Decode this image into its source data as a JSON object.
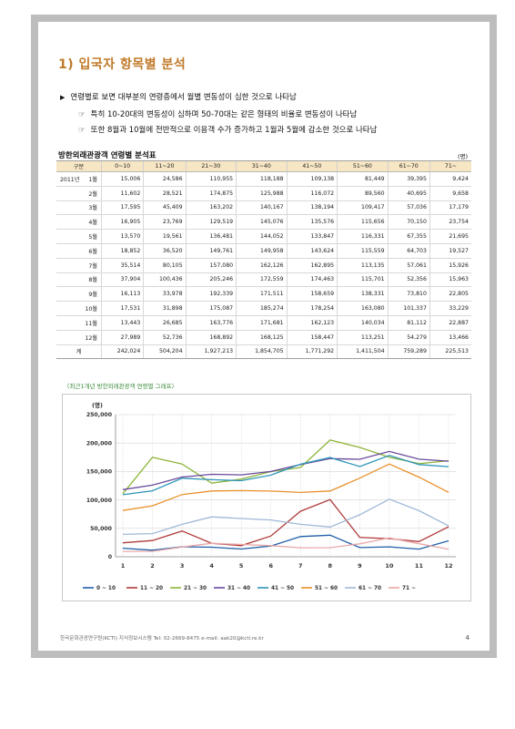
{
  "section_title": "1) 입국자 항목별 분석",
  "bullets": {
    "main": "연령별로 보면 대부분의 연령층에서 월별 변동성이 심한 것으로 나타남",
    "sub1": "특히 10-20대의 변동성이 심하며 50-70대는 같은 형태의 비율로 변동성이 나타남",
    "sub2": "또한 8월과 10월에 전반적으로 이용객 수가 증가하고 1월과 5월에 감소한 것으로 나타남"
  },
  "table": {
    "title": "방한외래관광객 연령별 분석표",
    "unit": "(명)",
    "headers": [
      "구분",
      "0~10",
      "11~20",
      "21~30",
      "31~40",
      "41~50",
      "51~60",
      "61~70",
      "71~"
    ],
    "year_label": "2011년",
    "rows": [
      {
        "month": "1월",
        "values": [
          "15,006",
          "24,586",
          "110,955",
          "118,188",
          "109,138",
          "81,449",
          "39,395",
          "9,424"
        ]
      },
      {
        "month": "2월",
        "values": [
          "11,602",
          "28,521",
          "174,875",
          "125,988",
          "116,072",
          "89,560",
          "40,695",
          "9,658"
        ]
      },
      {
        "month": "3월",
        "values": [
          "17,595",
          "45,409",
          "163,202",
          "140,167",
          "138,194",
          "109,417",
          "57,036",
          "17,179"
        ]
      },
      {
        "month": "4월",
        "values": [
          "16,905",
          "23,769",
          "129,519",
          "145,076",
          "135,576",
          "115,656",
          "70,150",
          "23,754"
        ]
      },
      {
        "month": "5월",
        "values": [
          "13,570",
          "19,561",
          "136,481",
          "144,052",
          "133,847",
          "116,331",
          "67,355",
          "21,695"
        ]
      },
      {
        "month": "6월",
        "values": [
          "18,852",
          "36,520",
          "149,761",
          "149,958",
          "143,624",
          "115,559",
          "64,703",
          "19,527"
        ]
      },
      {
        "month": "7월",
        "values": [
          "35,514",
          "80,105",
          "157,080",
          "162,126",
          "162,895",
          "113,135",
          "57,061",
          "15,926"
        ]
      },
      {
        "month": "8월",
        "values": [
          "37,904",
          "100,436",
          "205,246",
          "172,559",
          "174,463",
          "115,701",
          "52,356",
          "15,963"
        ]
      },
      {
        "month": "9월",
        "values": [
          "16,113",
          "33,978",
          "192,339",
          "171,511",
          "158,659",
          "138,331",
          "73,810",
          "22,805"
        ]
      },
      {
        "month": "10월",
        "values": [
          "17,531",
          "31,898",
          "175,087",
          "185,274",
          "178,254",
          "163,080",
          "101,337",
          "33,229"
        ]
      },
      {
        "month": "11월",
        "values": [
          "13,443",
          "26,685",
          "163,776",
          "171,681",
          "162,123",
          "140,034",
          "81,112",
          "22,887"
        ]
      },
      {
        "month": "12월",
        "values": [
          "27,989",
          "52,736",
          "168,892",
          "168,125",
          "158,447",
          "113,251",
          "54,279",
          "13,466"
        ]
      }
    ],
    "total": {
      "label": "계",
      "values": [
        "242,024",
        "504,204",
        "1,927,213",
        "1,854,705",
        "1,771,292",
        "1,411,504",
        "759,289",
        "225,513"
      ]
    }
  },
  "chart_caption": "〈최근1개년 방한외래관광객 연령별 그래프〉",
  "chart_data": {
    "type": "line",
    "ylabel": "(명)",
    "ylim": [
      0,
      250000
    ],
    "yticks": [
      "0",
      "50,000",
      "100,000",
      "150,000",
      "200,000",
      "250,000"
    ],
    "categories": [
      "1",
      "2",
      "3",
      "4",
      "5",
      "6",
      "7",
      "8",
      "9",
      "10",
      "11",
      "12"
    ],
    "grid": true,
    "legend_position": "bottom",
    "series": [
      {
        "name": "0 ~ 10",
        "color": "#1f5fa8",
        "values": [
          15006,
          11602,
          17595,
          16905,
          13570,
          18852,
          35514,
          37904,
          16113,
          17531,
          13443,
          27989
        ]
      },
      {
        "name": "11 ~ 20",
        "color": "#b03a3a",
        "values": [
          24586,
          28521,
          45409,
          23769,
          19561,
          36520,
          80105,
          100436,
          33978,
          31898,
          26685,
          52736
        ]
      },
      {
        "name": "21 ~ 30",
        "color": "#8db53a",
        "values": [
          110955,
          174875,
          163202,
          129519,
          136481,
          149761,
          157080,
          205246,
          192339,
          175087,
          163776,
          168892
        ]
      },
      {
        "name": "31 ~ 40",
        "color": "#6a4a9c",
        "values": [
          118188,
          125988,
          140167,
          145076,
          144052,
          149958,
          162126,
          172559,
          171511,
          185274,
          171681,
          168125
        ]
      },
      {
        "name": "41 ~ 50",
        "color": "#2e95b8",
        "values": [
          109138,
          116072,
          138194,
          135576,
          133847,
          143624,
          162895,
          174463,
          158659,
          178254,
          162123,
          158447
        ]
      },
      {
        "name": "51 ~ 60",
        "color": "#e8902a",
        "values": [
          81449,
          89560,
          109417,
          115656,
          116331,
          115559,
          113135,
          115701,
          138331,
          163080,
          140034,
          113251
        ]
      },
      {
        "name": "61 ~ 70",
        "color": "#9fb8d8",
        "values": [
          39395,
          40695,
          57036,
          70150,
          67355,
          64703,
          57061,
          52356,
          73810,
          101337,
          81112,
          54279
        ]
      },
      {
        "name": "71 ~",
        "color": "#e8a7a7",
        "values": [
          9424,
          9658,
          17179,
          23754,
          21695,
          19527,
          15926,
          15963,
          22805,
          33229,
          22887,
          13466
        ]
      }
    ]
  },
  "footer": "한국문화관광연구원(KCTI) 지식정보시스템   Tel: 02-2669-8475  e-mail: aak20@kcti.re.kr",
  "page_number": "4"
}
